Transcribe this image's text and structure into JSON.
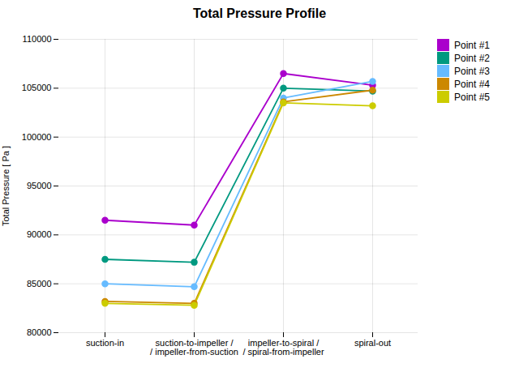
{
  "chart_data": {
    "type": "line",
    "title": "Total Pressure Profile",
    "ylabel": "Total Pressure [ Pa ]",
    "categories": [
      "suction-in",
      "suction-to-impeller /\n/ impeller-from-suction",
      "impeller-to-spiral /\n/ spiral-from-impeller",
      "spiral-out"
    ],
    "series": [
      {
        "name": "Point #1",
        "color": "#aa00cc",
        "values": [
          91500,
          91000,
          106500,
          105300
        ]
      },
      {
        "name": "Point #2",
        "color": "#009980",
        "values": [
          87500,
          87200,
          105000,
          104700
        ]
      },
      {
        "name": "Point #3",
        "color": "#66bbff",
        "values": [
          85000,
          84700,
          104000,
          105700
        ]
      },
      {
        "name": "Point #4",
        "color": "#cc8800",
        "values": [
          83200,
          83000,
          103600,
          104800
        ]
      },
      {
        "name": "Point #5",
        "color": "#cccc00",
        "values": [
          83000,
          82800,
          103500,
          103200
        ]
      }
    ],
    "ylim": [
      80000,
      110000
    ],
    "yticks": [
      80000,
      85000,
      90000,
      95000,
      100000,
      105000,
      110000
    ],
    "grid": true,
    "legend": "right",
    "marker": "circle"
  }
}
